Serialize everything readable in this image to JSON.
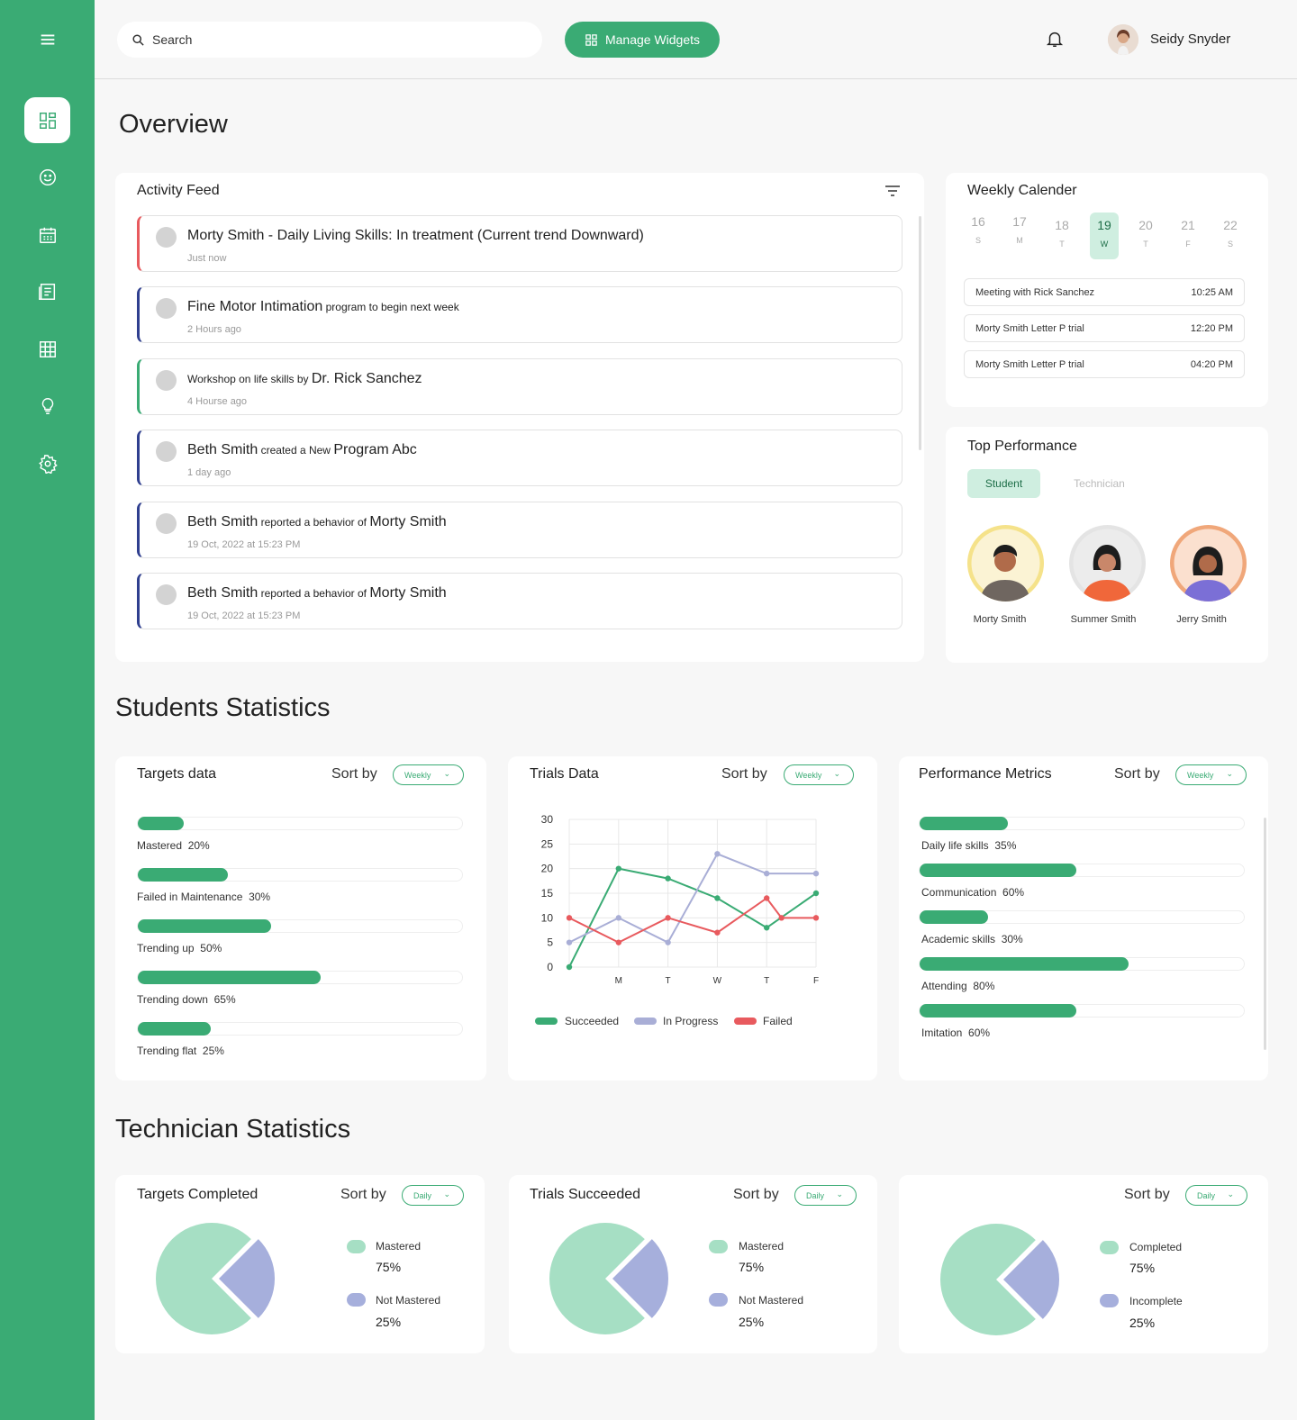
{
  "colors": {
    "accent": "#3aab74",
    "succeeded": "#3aab74",
    "in_progress": "#a9aed6",
    "failed": "#e85a5e",
    "pie_main": "#a6dfc4",
    "pie_minor": "#a6afdc"
  },
  "sidebar": {
    "items": [
      {
        "icon": "menu-icon"
      },
      {
        "icon": "dashboard-icon"
      },
      {
        "icon": "smiley-icon"
      },
      {
        "icon": "calendar-icon"
      },
      {
        "icon": "news-icon"
      },
      {
        "icon": "grid-icon"
      },
      {
        "icon": "bulb-icon"
      },
      {
        "icon": "gear-icon"
      }
    ]
  },
  "topbar": {
    "search_placeholder": "Search",
    "manage_widgets": "Manage Widgets",
    "user_name": "Seidy Snyder"
  },
  "overview": {
    "title": "Overview"
  },
  "activity_feed": {
    "title": "Activity Feed",
    "items": [
      {
        "main": "Morty Smith - Daily Living Skills: In treatment (Current trend Downward)",
        "time": "Just now",
        "accent": "#e85a5e"
      },
      {
        "a": "Fine Motor Intimation",
        "b": " program to begin next week",
        "time": "2 Hours ago",
        "accent": "#2f3f8f"
      },
      {
        "a": "Workshop on life skills by ",
        "b": "Dr. Rick Sanchez",
        "time": "4 Hourse ago",
        "accent": "#3aab74"
      },
      {
        "a": "Beth Smith",
        "b": " created a New ",
        "c": "Program Abc",
        "time": "1 day ago",
        "accent": "#2f3f8f"
      },
      {
        "a": "Beth Smith",
        "b": " reported a behavior of ",
        "c": "Morty Smith",
        "time": "19 Oct, 2022 at 15:23 PM",
        "accent": "#2f3f8f"
      },
      {
        "a": "Beth Smith",
        "b": " reported a behavior of ",
        "c": "Morty Smith",
        "time": "19 Oct, 2022 at 15:23 PM",
        "accent": "#2f3f8f"
      }
    ]
  },
  "calendar": {
    "title": "Weekly Calender",
    "days": [
      {
        "n": "16",
        "l": "S"
      },
      {
        "n": "17",
        "l": "M"
      },
      {
        "n": "18",
        "l": "T"
      },
      {
        "n": "19",
        "l": "W"
      },
      {
        "n": "20",
        "l": "T"
      },
      {
        "n": "21",
        "l": "F"
      },
      {
        "n": "22",
        "l": "S"
      }
    ],
    "events": [
      {
        "title": "Meeting with Rick Sanchez",
        "time": "10:25 AM"
      },
      {
        "title": "Morty Smith Letter P trial",
        "time": "12:20 PM"
      },
      {
        "title": "Morty Smith Letter P trial",
        "time": "04:20 PM"
      }
    ]
  },
  "top_performance": {
    "title": "Top Performance",
    "tabs": [
      "Student",
      "Technician"
    ],
    "people": [
      {
        "name": "Morty Smith",
        "ring": "#f5e28a"
      },
      {
        "name": "Summer Smith",
        "ring": "#e4e4e4"
      },
      {
        "name": "Jerry Smith",
        "ring": "#f0a77a"
      }
    ]
  },
  "students_stats": {
    "title": "Students Statistics",
    "targets": {
      "title": "Targets data",
      "sort_by": "Sort by",
      "select": "Weekly",
      "rows": [
        {
          "label": "Mastered",
          "pct": "20%",
          "value": 0.14
        },
        {
          "label": "Failed in Maintenance",
          "pct": "30%",
          "value": 0.275
        },
        {
          "label": "Trending up",
          "pct": "50%",
          "value": 0.41
        },
        {
          "label": "Trending down",
          "pct": "65%",
          "value": 0.56
        },
        {
          "label": "Trending flat",
          "pct": "25%",
          "value": 0.225
        }
      ]
    },
    "trials": {
      "title": "Trials Data",
      "sort_by": "Sort by",
      "select": "Weekly",
      "legend": [
        "Succeeded",
        "In Progress",
        "Failed"
      ]
    },
    "performance": {
      "title": "Performance Metrics",
      "sort_by": "Sort by",
      "select": "Weekly",
      "rows": [
        {
          "label": "Daily life skills",
          "pct": "35%",
          "value": 0.27
        },
        {
          "label": "Communication",
          "pct": "60%",
          "value": 0.48
        },
        {
          "label": "Academic skills",
          "pct": "30%",
          "value": 0.21
        },
        {
          "label": "Attending",
          "pct": "80%",
          "value": 0.64
        },
        {
          "label": "Imitation",
          "pct": "60%",
          "value": 0.48
        }
      ]
    }
  },
  "chart_data": {
    "type": "line",
    "categories": [
      "",
      "M",
      "T",
      "W",
      "T",
      "F"
    ],
    "ylim": [
      0,
      30
    ],
    "yticks": [
      0,
      5,
      10,
      15,
      20,
      25,
      30
    ],
    "series": [
      {
        "name": "Succeeded",
        "color": "#3aab74",
        "x": [
          0,
          1,
          2,
          3,
          4,
          5
        ],
        "values": [
          0,
          20,
          18,
          14,
          8,
          15
        ]
      },
      {
        "name": "In Progress",
        "color": "#a9aed6",
        "x": [
          0,
          1,
          2,
          3,
          4,
          5
        ],
        "values": [
          5,
          10,
          5,
          23,
          19,
          19
        ]
      },
      {
        "name": "Failed",
        "color": "#e85a5e",
        "x": [
          0,
          1,
          2,
          3,
          4,
          4.3,
          5
        ],
        "values": [
          10,
          5,
          10,
          7,
          14,
          10,
          10
        ]
      }
    ]
  },
  "technician_stats": {
    "title": "Technician Statistics",
    "cards": [
      {
        "title": "Targets Completed",
        "sort_by": "Sort by",
        "select": "Daily",
        "legend": [
          {
            "label": "Mastered",
            "value": "75%"
          },
          {
            "label": "Not Mastered",
            "value": "25%"
          }
        ]
      },
      {
        "title": "Trials Succeeded",
        "sort_by": "Sort by",
        "select": "Daily",
        "legend": [
          {
            "label": "Mastered",
            "value": "75%"
          },
          {
            "label": "Not Mastered",
            "value": "25%"
          }
        ]
      },
      {
        "title": "",
        "sort_by": "Sort by",
        "select": "Daily",
        "legend": [
          {
            "label": "Completed",
            "value": "75%"
          },
          {
            "label": "Incomplete",
            "value": "25%"
          }
        ]
      }
    ]
  }
}
